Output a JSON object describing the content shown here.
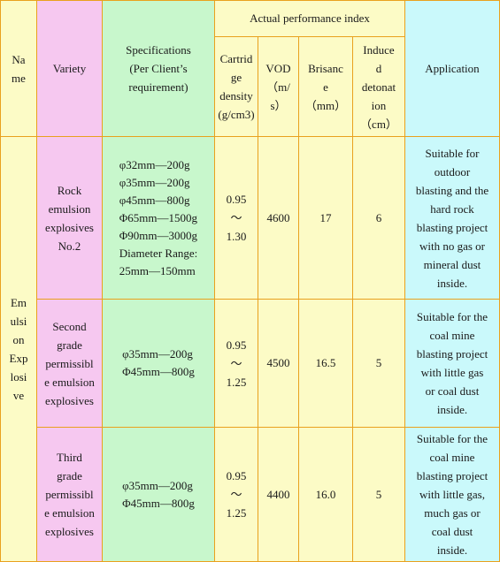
{
  "header": {
    "name": [
      "Na",
      "me"
    ],
    "variety": "Variety",
    "specifications": [
      "Specifications",
      "(Per Client’s",
      "requirement)"
    ],
    "performance_group": "Actual performance index",
    "cartridge_density": [
      "Cartrid",
      "ge",
      "density",
      "(g/cm3)"
    ],
    "vod": [
      "VOD",
      "（m/",
      "s）"
    ],
    "brisance": [
      "Brisanc",
      "e",
      "（mm）"
    ],
    "induced_detonation": [
      "Induce",
      "d",
      "detonat",
      "ion",
      "（cm）"
    ],
    "application": "Application"
  },
  "category": [
    "Em",
    "ulsi",
    "on",
    "Exp",
    "losi",
    "ve"
  ],
  "rows": [
    {
      "variety": [
        "Rock",
        "emulsion",
        "explosives",
        "No.2"
      ],
      "specs": [
        "φ32mm—200g",
        "φ35mm—200g",
        "φ45mm—800g",
        "Φ65mm—1500g",
        "Φ90mm—3000g",
        "Diameter Range:",
        "25mm—150mm"
      ],
      "density": [
        "0.95",
        "～",
        "1.30"
      ],
      "vod": "4600",
      "brisance": "17",
      "detonation": "6",
      "application": [
        "Suitable for",
        "outdoor",
        "blasting and the",
        "hard rock",
        "blasting project",
        "with no gas or",
        "mineral dust",
        "inside."
      ]
    },
    {
      "variety": [
        "Second",
        "grade",
        "permissibl",
        "e emulsion",
        "explosives"
      ],
      "specs": [
        "φ35mm—200g",
        "Φ45mm—800g"
      ],
      "density": [
        "0.95",
        "～",
        "1.25"
      ],
      "vod": "4500",
      "brisance": "16.5",
      "detonation": "5",
      "application": [
        "Suitable for the",
        "coal mine",
        "blasting project",
        "with little gas",
        "or coal dust",
        "inside."
      ]
    },
    {
      "variety": [
        "Third",
        "grade",
        "permissibl",
        "e emulsion",
        "explosives"
      ],
      "specs": [
        "φ35mm—200g",
        "Φ45mm—800g"
      ],
      "density": [
        "0.95",
        "～",
        "1.25"
      ],
      "vod": "4400",
      "brisance": "16.0",
      "detonation": "5",
      "application": [
        "Suitable for the",
        "coal mine",
        "blasting project",
        "with little gas,",
        "much gas or",
        "coal dust",
        "inside."
      ]
    }
  ]
}
